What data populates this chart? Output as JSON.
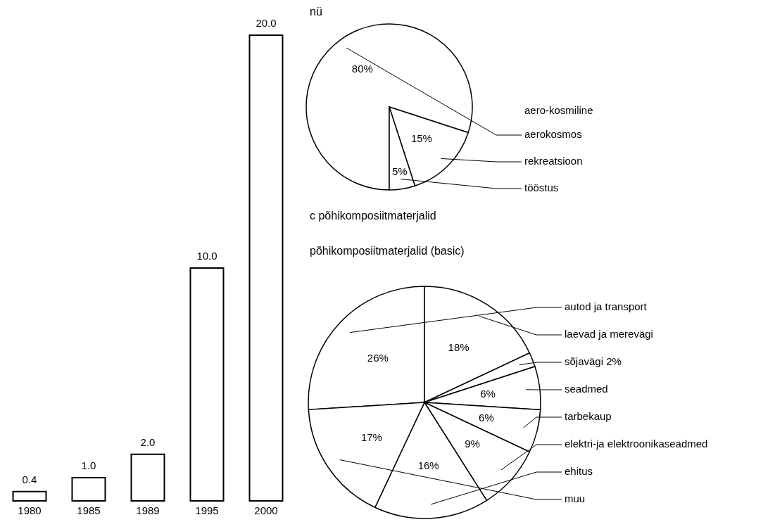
{
  "chart_data": [
    {
      "type": "bar",
      "categories": [
        "1980",
        "1985",
        "1989",
        "1995",
        "2000"
      ],
      "values": [
        0.4,
        1.0,
        2.0,
        10.0,
        20.0
      ],
      "color": "#ffffff",
      "value_labels": [
        "0.4",
        "1.0",
        "2.0",
        "10.0",
        "20.0"
      ]
    },
    {
      "type": "pie",
      "title": "nü",
      "categories": [
        "aerokosmos",
        "rekreatsioon",
        "tööstus"
      ],
      "values": [
        80,
        15,
        5
      ],
      "colors": [
        "#ffffff",
        "#ffffff",
        "#ffffff"
      ],
      "value_labels": [
        "80%",
        "15%",
        "5%"
      ],
      "annotations": [
        "aero-kosmiline"
      ]
    },
    {
      "type": "pie",
      "title": "c põhikomposiitmaterjalid",
      "subtitle": "põhikomposiitmaterjalid (basic)",
      "categories": [
        "autod ja transport",
        "laevad ja merevägi",
        "sõjavägi 2%",
        "seadmed",
        "tarbekaup",
        "elektri-ja elektroonikaseadmed",
        "ehitus",
        "muu"
      ],
      "values": [
        26,
        18,
        2,
        6,
        6,
        9,
        16,
        17
      ],
      "colors": [
        "#ffffff",
        "#ffffff",
        "#ffffff",
        "#ffffff",
        "#ffffff",
        "#ffffff",
        "#ffffff",
        "#ffffff"
      ],
      "value_labels": [
        "26%",
        "18%",
        null,
        "6%",
        "6%",
        "9%",
        "16%",
        "17%"
      ]
    }
  ]
}
